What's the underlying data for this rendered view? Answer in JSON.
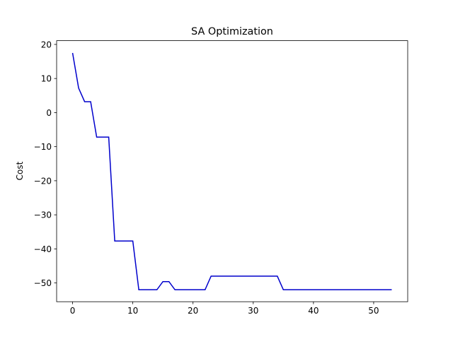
{
  "chart_data": {
    "type": "line",
    "title": "SA Optimization",
    "y_label": "Cost",
    "x": [
      0,
      1,
      2,
      3,
      4,
      5,
      6,
      7,
      8,
      9,
      10,
      11,
      12,
      13,
      14,
      15,
      16,
      17,
      18,
      19,
      20,
      21,
      22,
      23,
      24,
      25,
      26,
      27,
      28,
      29,
      30,
      31,
      32,
      33,
      34,
      35,
      36,
      37,
      38,
      39,
      40,
      41,
      42,
      43,
      44,
      45,
      46,
      47,
      48,
      49,
      50,
      51,
      52,
      53
    ],
    "series": [
      {
        "name": "Cost",
        "color": "#0000cc",
        "values": [
          17.5,
          7.2,
          3.2,
          3.2,
          -7.2,
          -7.2,
          -7.2,
          -37.7,
          -37.7,
          -37.7,
          -37.7,
          -52,
          -52,
          -52,
          -52,
          -49.6,
          -49.6,
          -52,
          -52,
          -52,
          -52,
          -52,
          -52,
          -48,
          -48,
          -48,
          -48,
          -48,
          -48,
          -48,
          -48,
          -48,
          -48,
          -48,
          -48,
          -52,
          -52,
          -52,
          -52,
          -52,
          -52,
          -52,
          -52,
          -52,
          -52,
          -52,
          -52,
          -52,
          -52,
          -52,
          -52,
          -52,
          -52,
          -52
        ]
      }
    ],
    "xlim": [
      -2.65,
      55.65
    ],
    "ylim": [
      -55.5,
      21.1
    ],
    "xticks": [
      0,
      10,
      20,
      30,
      40,
      50
    ],
    "yticks": [
      {
        "value": -50,
        "label": "−50"
      },
      {
        "value": -40,
        "label": "−40"
      },
      {
        "value": -30,
        "label": "−30"
      },
      {
        "value": -20,
        "label": "−20"
      },
      {
        "value": -10,
        "label": "−10"
      },
      0,
      10,
      20
    ],
    "grid": false
  }
}
